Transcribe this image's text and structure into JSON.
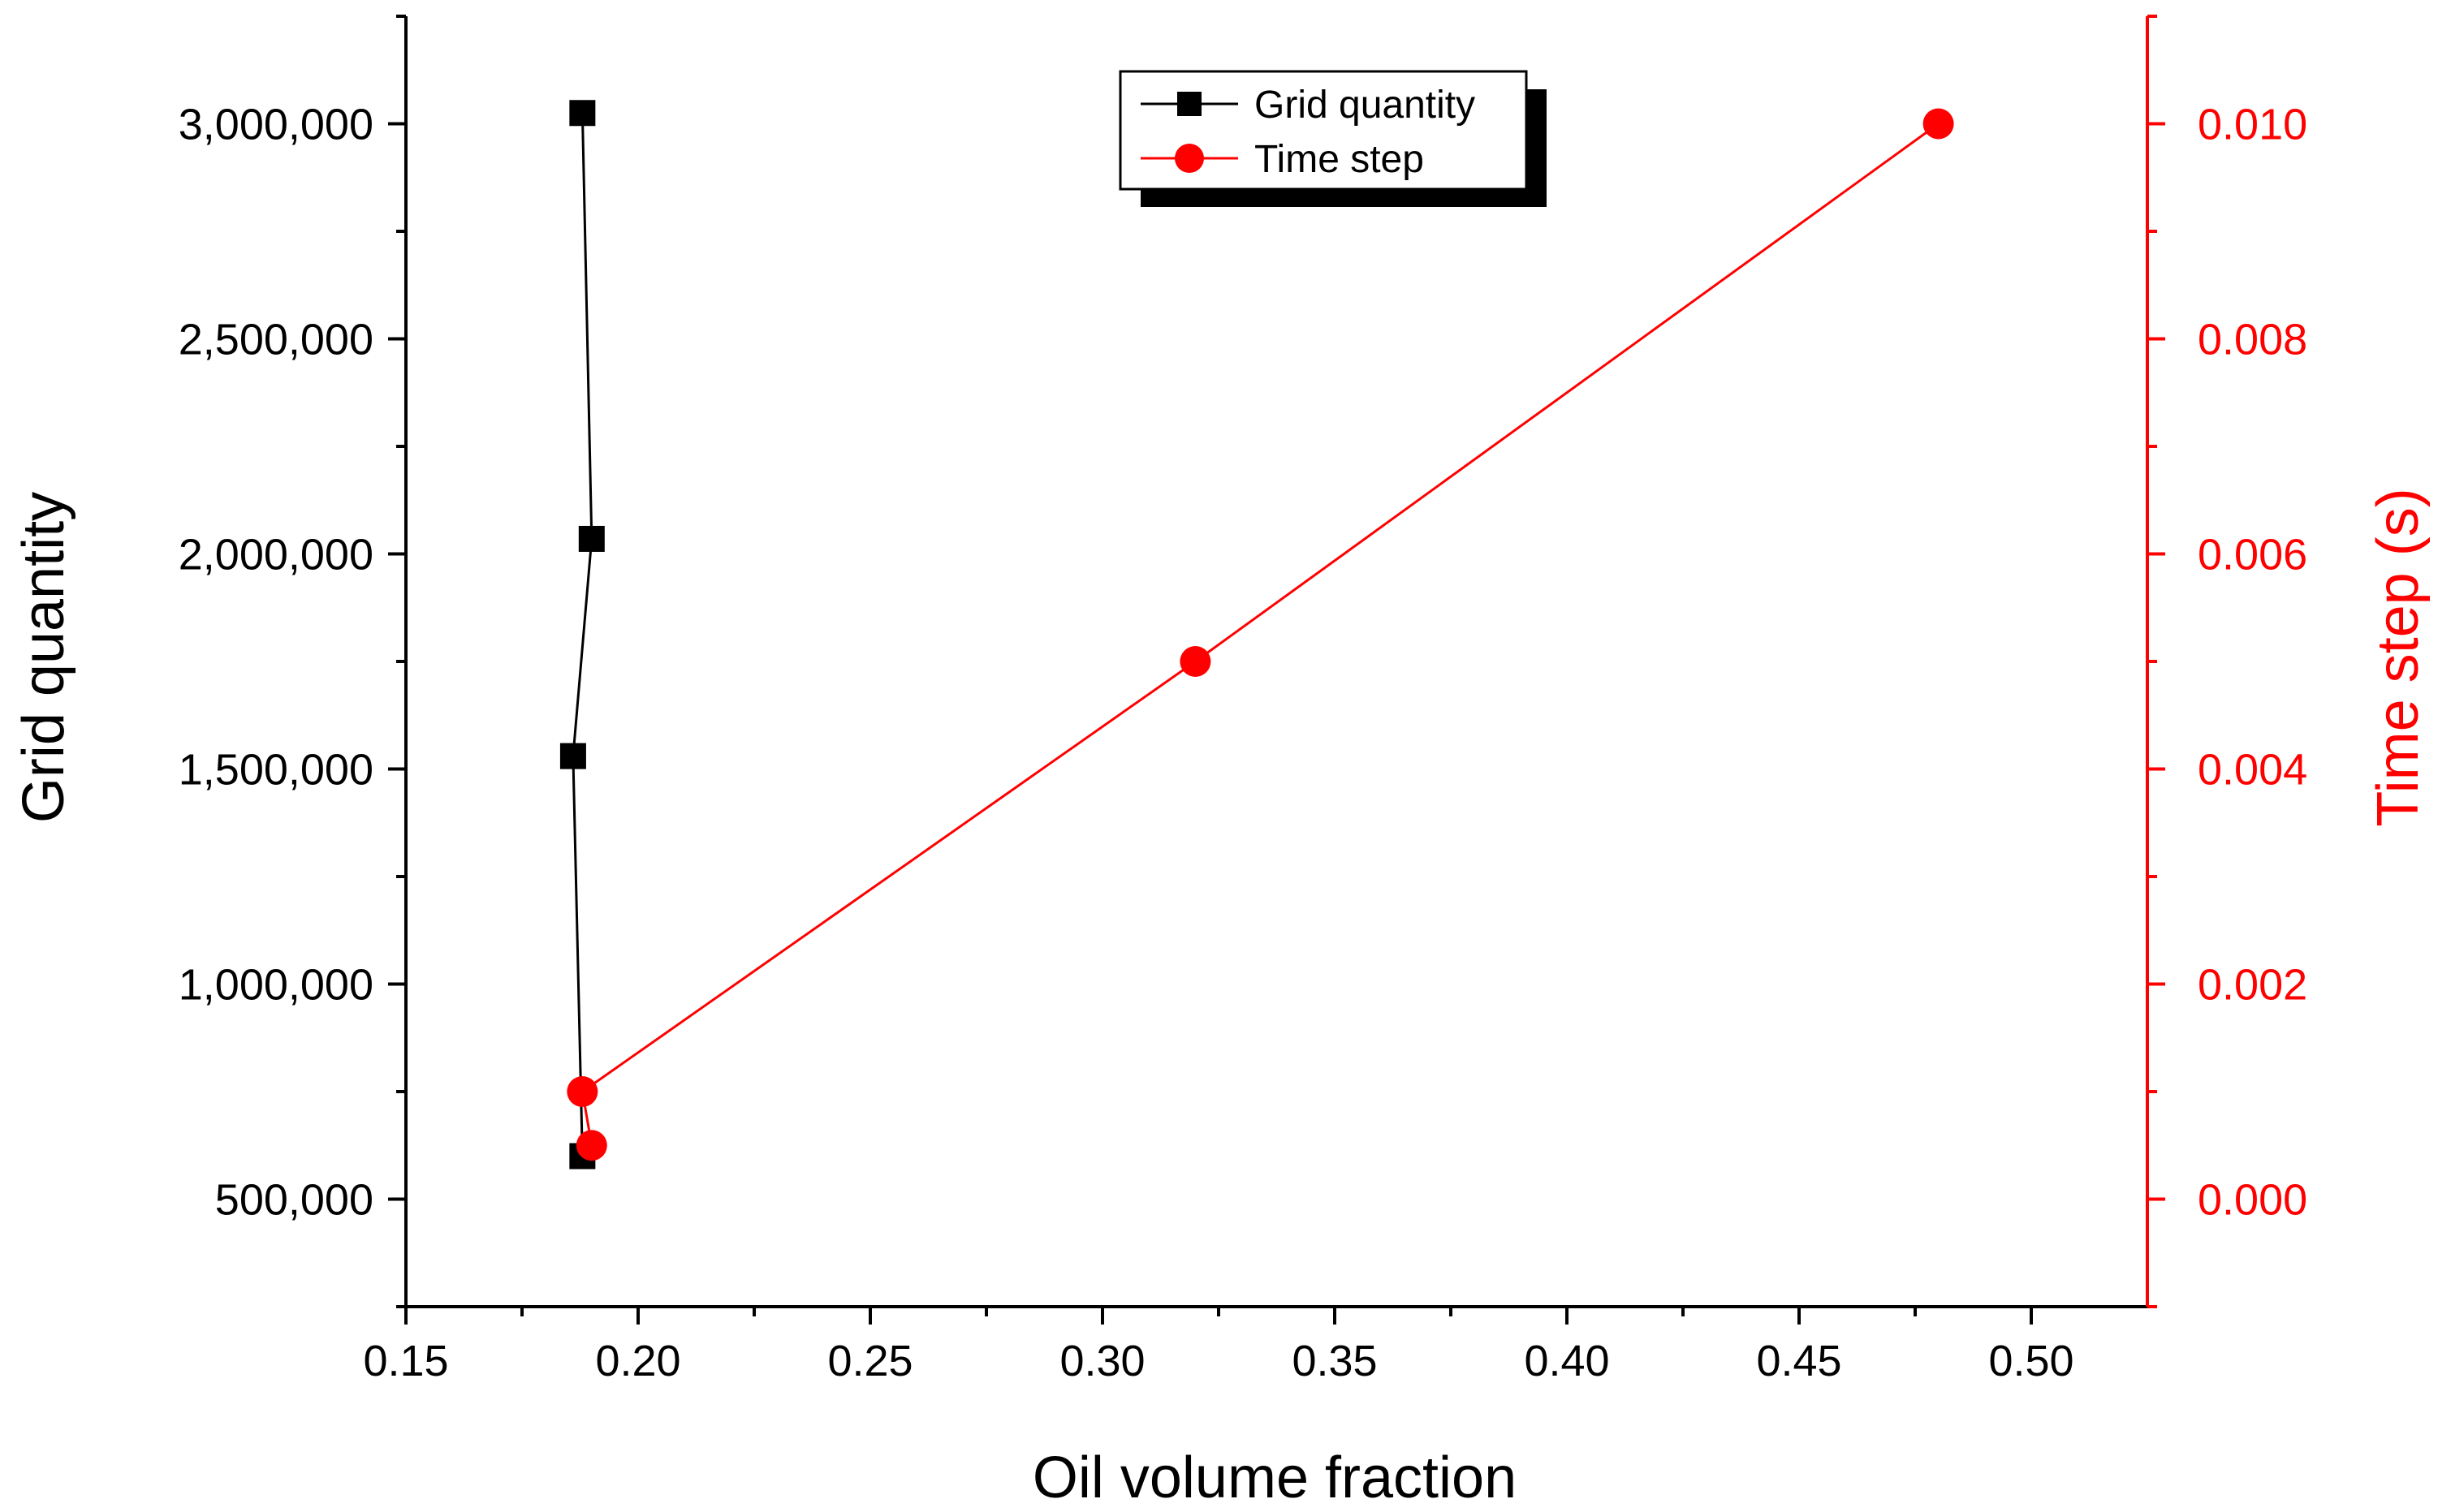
{
  "colors": {
    "axis": "#000000",
    "grid_series": "#000000",
    "time_series": "#ff0000",
    "background": "#ffffff"
  },
  "chart_data": {
    "type": "line",
    "xlabel": "Oil volume fraction",
    "ylabel_left": "Grid quantity",
    "ylabel_right": "Time step (s)",
    "xlim": [
      0.15,
      0.525
    ],
    "ylim_left": [
      250000,
      3250000
    ],
    "ylim_right": [
      -0.001,
      0.011
    ],
    "x_ticks": [
      "0.15",
      "0.20",
      "0.25",
      "0.30",
      "0.35",
      "0.40",
      "0.45",
      "0.50"
    ],
    "x_tick_values": [
      0.15,
      0.2,
      0.25,
      0.3,
      0.35,
      0.4,
      0.45,
      0.5
    ],
    "y_left_ticks": [
      "500,000",
      "1,000,000",
      "1,500,000",
      "2,000,000",
      "2,500,000",
      "3,000,000"
    ],
    "y_left_tick_values": [
      500000,
      1000000,
      1500000,
      2000000,
      2500000,
      3000000
    ],
    "y_right_ticks": [
      "0.000",
      "0.002",
      "0.004",
      "0.006",
      "0.008",
      "0.010"
    ],
    "y_right_tick_values": [
      0.0,
      0.002,
      0.004,
      0.006,
      0.008,
      0.01
    ],
    "grid": false,
    "legend_position": "top-center",
    "series": [
      {
        "name": "Grid quantity",
        "axis": "left",
        "marker": "square",
        "color": "#000000",
        "x": [
          0.188,
          0.186,
          0.19,
          0.188
        ],
        "y": [
          600000,
          1530000,
          2035000,
          3025000
        ]
      },
      {
        "name": "Time step",
        "axis": "right",
        "marker": "circle",
        "color": "#ff0000",
        "x": [
          0.19,
          0.188,
          0.32,
          0.48
        ],
        "y": [
          0.0005,
          0.001,
          0.005,
          0.01
        ]
      }
    ]
  }
}
